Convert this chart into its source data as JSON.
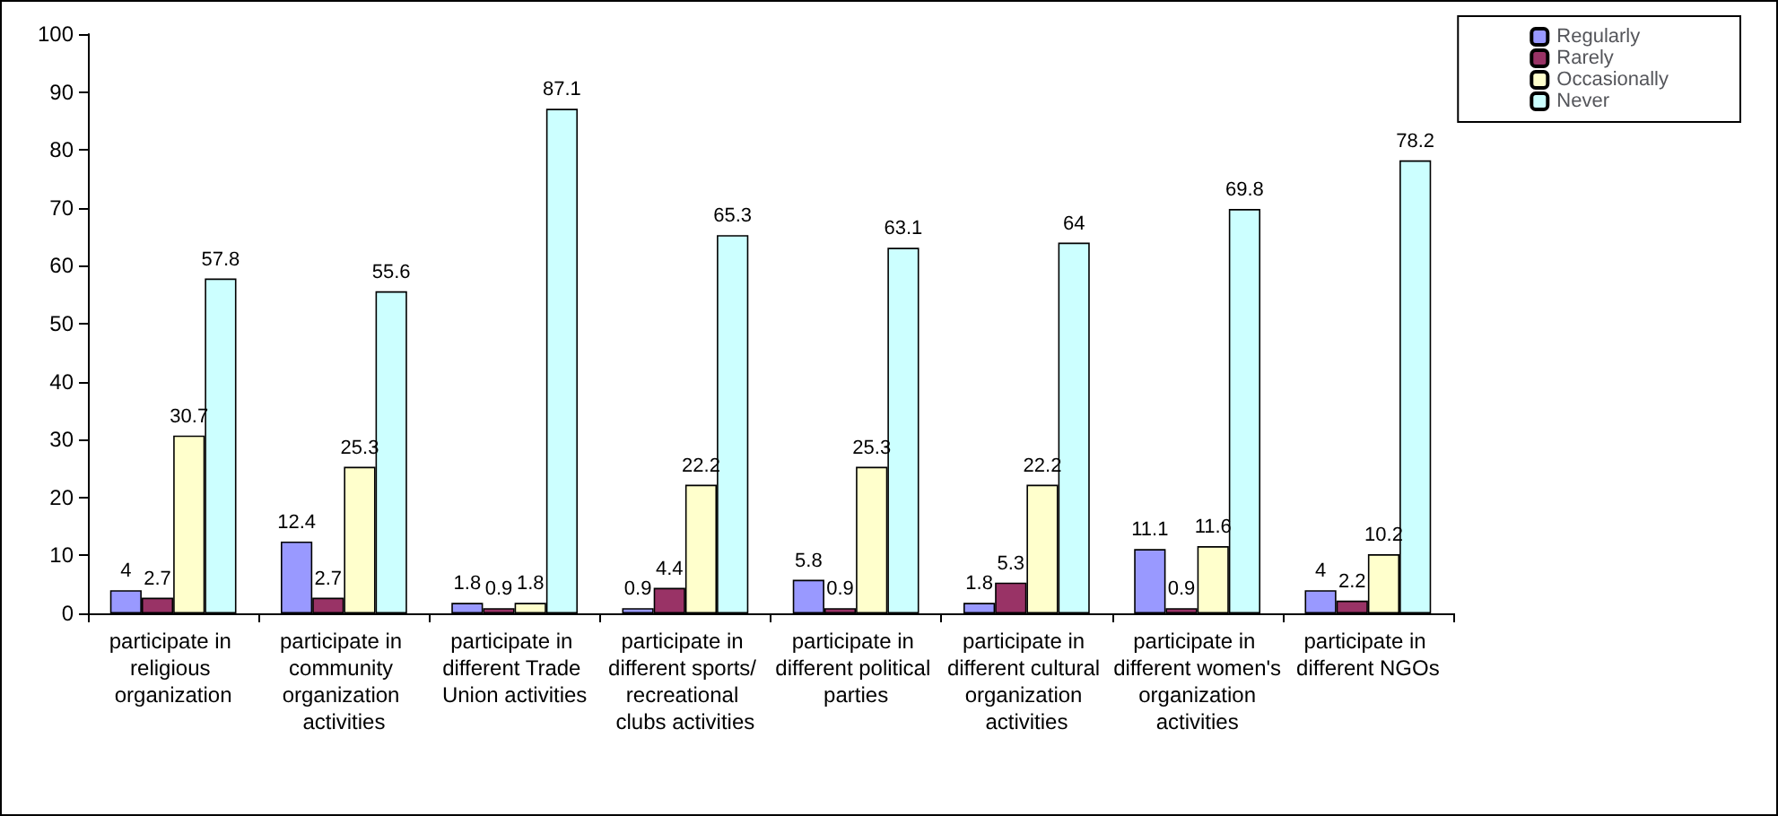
{
  "chart_data": {
    "type": "bar",
    "categories": [
      "participate in religious organization",
      "participate in community organization activities",
      "participate in different Trade Union activities",
      "participate in different sports/ recreational clubs activities",
      "participate in different political parties",
      "participate in different cultural organization activities",
      "participate in different women's organization activities",
      "participate in different NGOs"
    ],
    "series": [
      {
        "name": "Regularly",
        "color": "#9999ff",
        "values": [
          4,
          12.4,
          1.8,
          0.9,
          5.8,
          1.8,
          11.1,
          4
        ]
      },
      {
        "name": "Rarely",
        "color": "#993366",
        "values": [
          2.7,
          2.7,
          0.9,
          4.4,
          0.9,
          5.3,
          0.9,
          2.2
        ]
      },
      {
        "name": "Occasionally",
        "color": "#ffffcc",
        "values": [
          30.7,
          25.3,
          1.8,
          22.2,
          25.3,
          22.2,
          11.6,
          10.2
        ]
      },
      {
        "name": "Never",
        "color": "#ccffff",
        "values": [
          57.8,
          55.6,
          87.1,
          65.3,
          63.1,
          64,
          69.8,
          78.2
        ]
      }
    ],
    "ylim": [
      0,
      100
    ],
    "yticks": [
      0,
      10,
      20,
      30,
      40,
      50,
      60,
      70,
      80,
      90,
      100
    ],
    "data_labels": true,
    "legend": "top right",
    "grid": false
  }
}
